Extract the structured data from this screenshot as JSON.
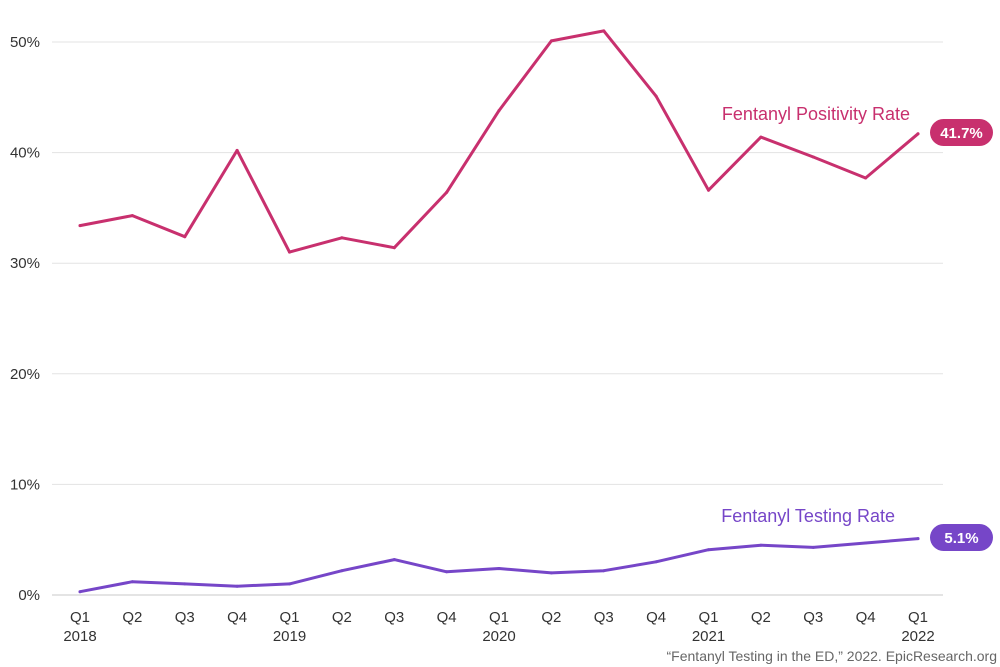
{
  "chart_data": {
    "type": "line",
    "categories": [
      "Q1 2018",
      "Q2 2018",
      "Q3 2018",
      "Q4 2018",
      "Q1 2019",
      "Q2 2019",
      "Q3 2019",
      "Q4 2019",
      "Q1 2020",
      "Q2 2020",
      "Q3 2020",
      "Q4 2020",
      "Q1 2021",
      "Q2 2021",
      "Q3 2021",
      "Q4 2021",
      "Q1 2022"
    ],
    "x_tick_labels": [
      {
        "quarter": "Q1",
        "year": "2018"
      },
      {
        "quarter": "Q2",
        "year": ""
      },
      {
        "quarter": "Q3",
        "year": ""
      },
      {
        "quarter": "Q4",
        "year": ""
      },
      {
        "quarter": "Q1",
        "year": "2019"
      },
      {
        "quarter": "Q2",
        "year": ""
      },
      {
        "quarter": "Q3",
        "year": ""
      },
      {
        "quarter": "Q4",
        "year": ""
      },
      {
        "quarter": "Q1",
        "year": "2020"
      },
      {
        "quarter": "Q2",
        "year": ""
      },
      {
        "quarter": "Q3",
        "year": ""
      },
      {
        "quarter": "Q4",
        "year": ""
      },
      {
        "quarter": "Q1",
        "year": "2021"
      },
      {
        "quarter": "Q2",
        "year": ""
      },
      {
        "quarter": "Q3",
        "year": ""
      },
      {
        "quarter": "Q4",
        "year": ""
      },
      {
        "quarter": "Q1",
        "year": "2022"
      }
    ],
    "series": [
      {
        "name": "Fentanyl Positivity Rate",
        "color": "#c8306e",
        "values": [
          33.4,
          34.3,
          32.4,
          40.2,
          31.0,
          32.3,
          31.4,
          36.4,
          43.8,
          50.1,
          51.0,
          45.1,
          36.6,
          41.4,
          39.6,
          37.7,
          41.7
        ],
        "end_label": "41.7%"
      },
      {
        "name": "Fentanyl Testing Rate",
        "color": "#7646c8",
        "values": [
          0.3,
          1.2,
          1.0,
          0.8,
          1.0,
          2.2,
          3.2,
          2.1,
          2.4,
          2.0,
          2.2,
          3.0,
          4.1,
          4.5,
          4.3,
          4.7,
          5.1
        ],
        "end_label": "5.1%"
      }
    ],
    "y_ticks": [
      "0%",
      "10%",
      "20%",
      "30%",
      "40%",
      "50%"
    ],
    "y_tick_values": [
      0,
      10,
      20,
      30,
      40,
      50
    ],
    "ylim": [
      0,
      50
    ],
    "grid": true
  },
  "source": "“Fentanyl Testing in the ED,” 2022. EpicResearch.org"
}
